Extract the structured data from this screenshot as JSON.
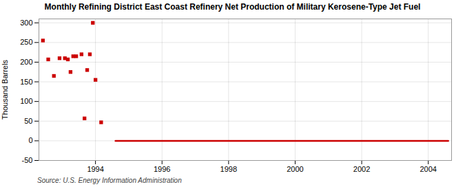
{
  "chart_data": {
    "type": "scatter",
    "title": "Monthly Refining District East Coast Refinery Net Production of Military Kerosene-Type Jet Fuel",
    "ylabel": "Thousand Barrels",
    "source": "Source: U.S. Energy Information Administration",
    "xlim": [
      1992.3,
      2004.7
    ],
    "xticks": [
      1994,
      1996,
      1998,
      2000,
      2002,
      2004
    ],
    "ylim": [
      -50,
      310
    ],
    "yticks": [
      -50,
      0,
      50,
      100,
      150,
      200,
      250,
      300
    ],
    "grid": true,
    "series": [
      {
        "type": "scatter",
        "color": "#cc0000",
        "marker": "square",
        "x": [
          1992.42,
          1992.58,
          1992.75,
          1992.92,
          1993.08,
          1993.25,
          1993.42,
          1993.58,
          1993.75,
          1993.92,
          1993.17,
          1993.33,
          1993.67,
          1993.83,
          1994.0,
          1994.17
        ],
        "values": [
          255,
          207,
          165,
          210,
          210,
          175,
          215,
          220,
          180,
          300,
          207,
          215,
          57,
          220,
          155,
          47
        ]
      },
      {
        "type": "line",
        "color": "#cc0000",
        "x": [
          1994.6,
          2004.6
        ],
        "values": [
          0,
          0
        ]
      }
    ]
  }
}
